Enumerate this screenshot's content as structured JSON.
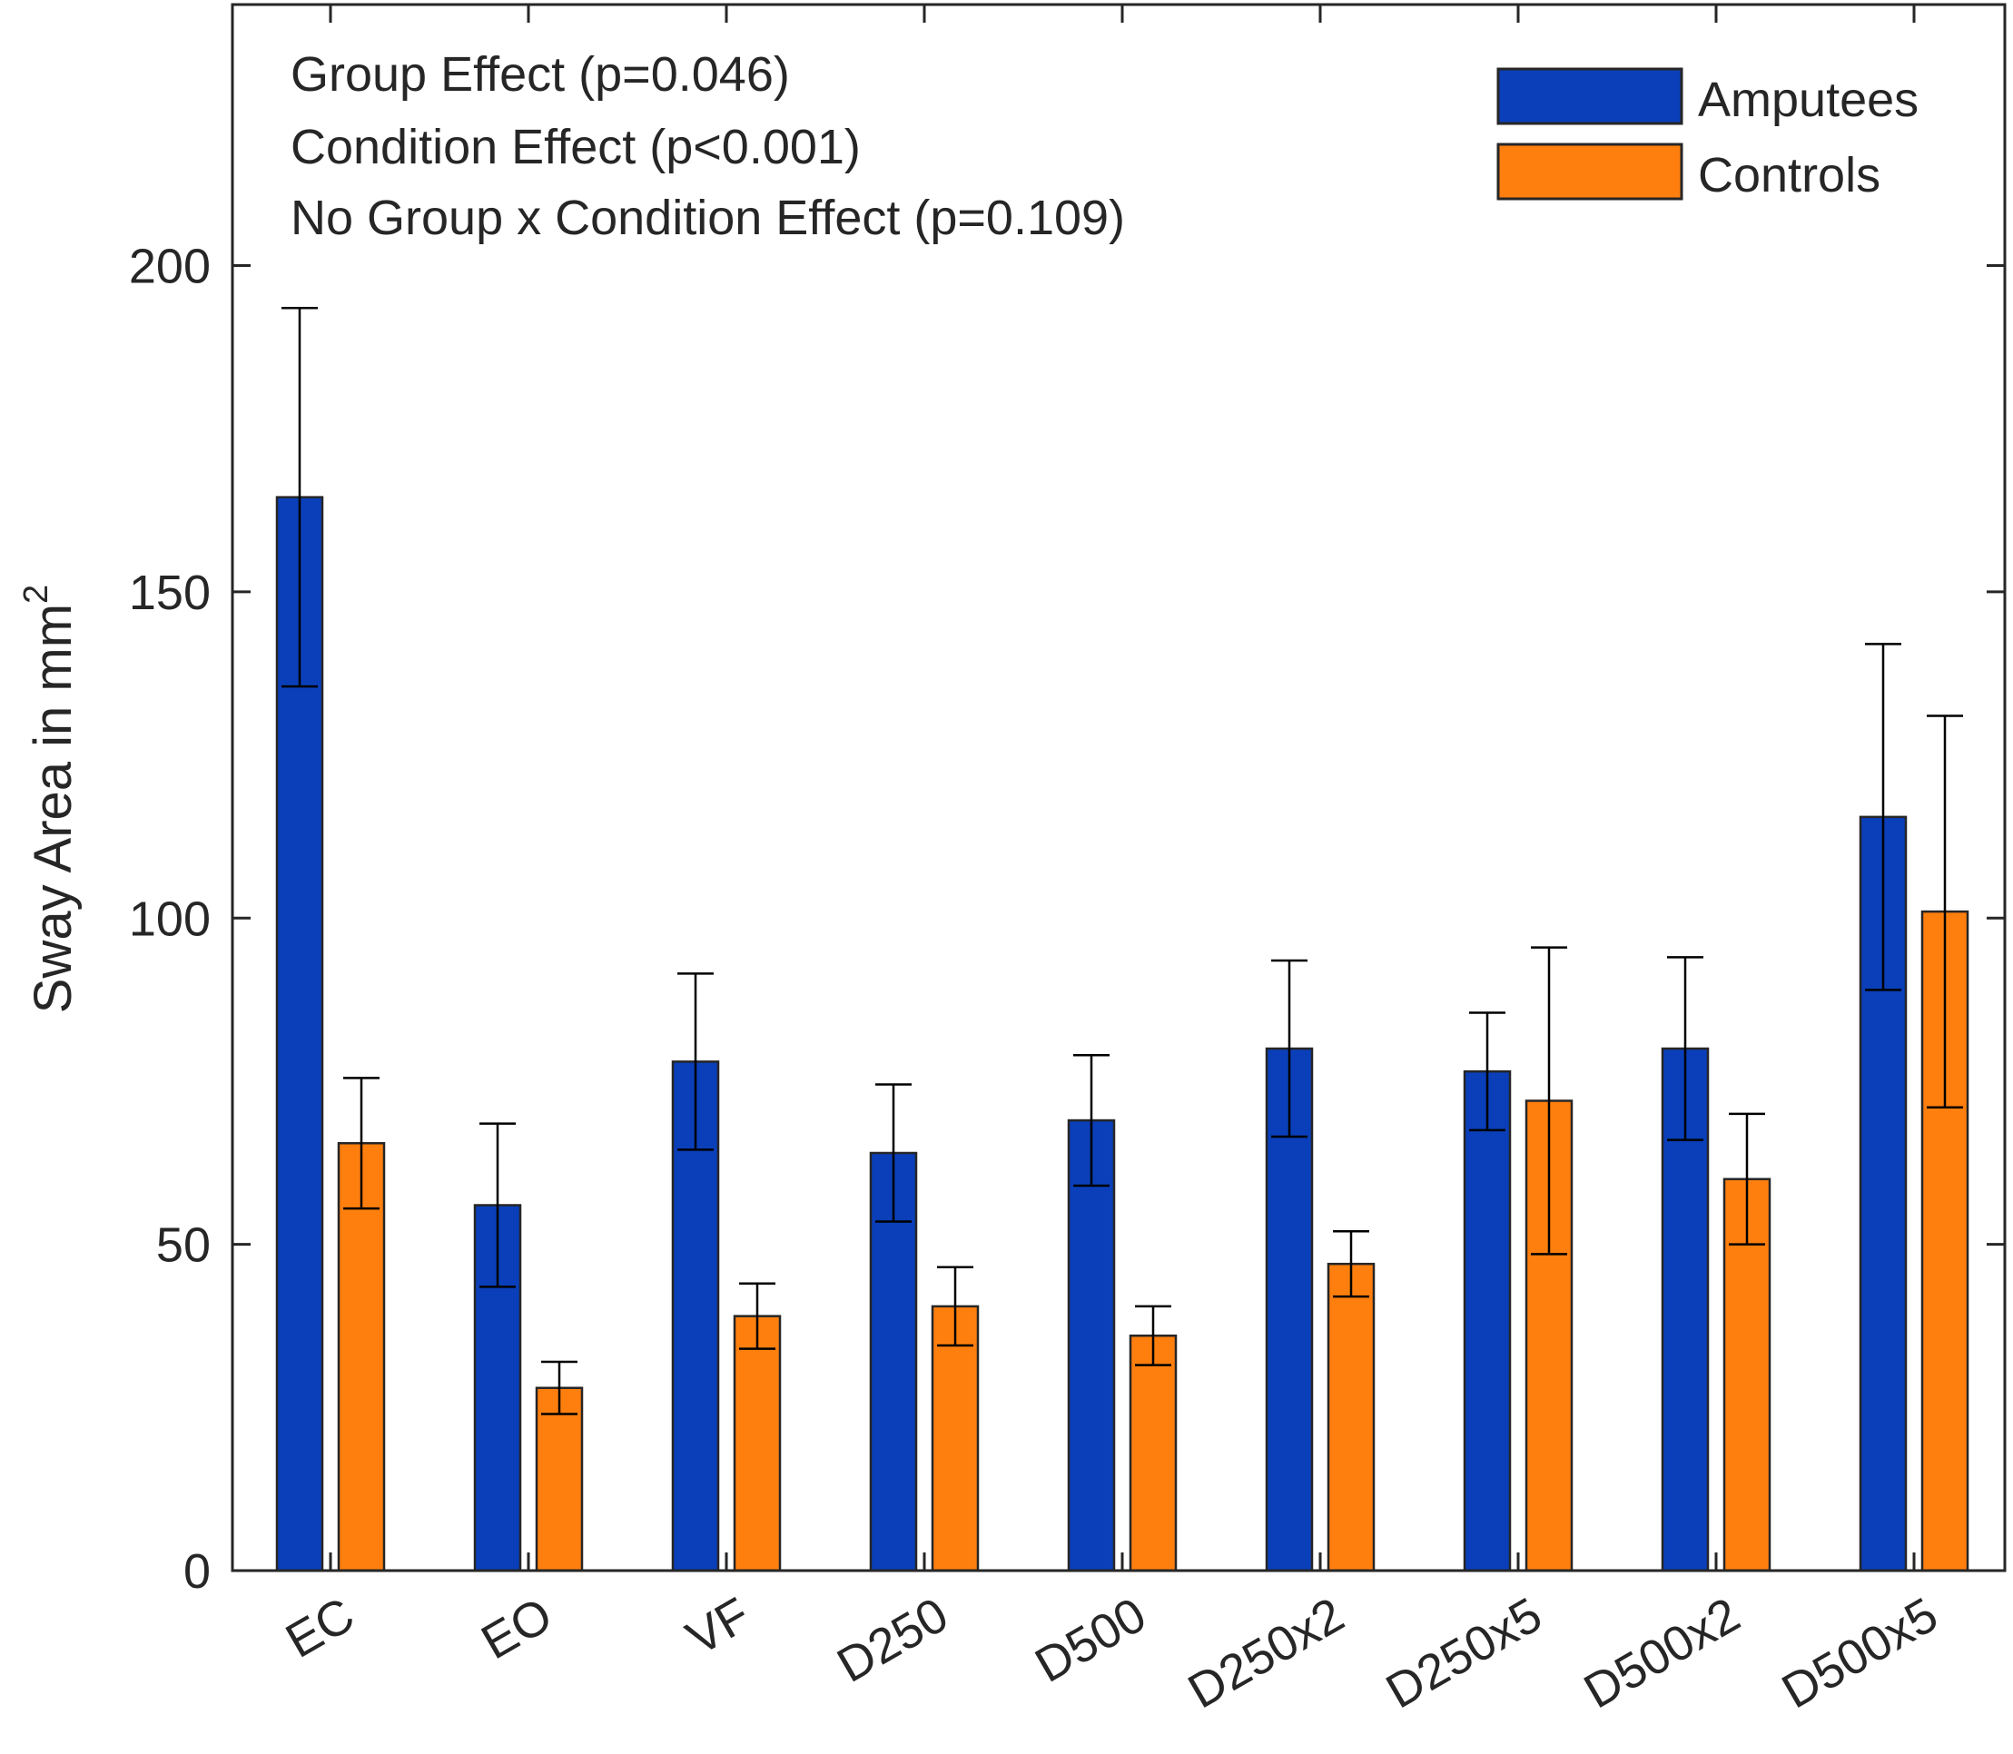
{
  "chart_data": {
    "type": "bar",
    "title": "",
    "xlabel": "",
    "ylabel": "Sway Area in mm",
    "ylabel_superscript": "2",
    "ylim": [
      0,
      240
    ],
    "yticks": [
      0,
      50,
      100,
      150,
      200
    ],
    "categories": [
      "EC",
      "EO",
      "VF",
      "D250",
      "D500",
      "D250x2",
      "D250x5",
      "D500x2",
      "D500x5"
    ],
    "series": [
      {
        "name": "Amputees",
        "color": "#0a3fb9",
        "values": [
          164.5,
          56,
          78,
          64,
          69,
          80,
          76.5,
          80,
          115.5
        ],
        "error": [
          29,
          12.5,
          13.5,
          10.5,
          10,
          13.5,
          9,
          14,
          26.5
        ]
      },
      {
        "name": "Controls",
        "color": "#ff7f0e",
        "values": [
          65.5,
          28,
          39,
          40.5,
          36,
          47,
          72,
          60,
          101
        ],
        "error": [
          10,
          4,
          5,
          6,
          4.5,
          5,
          23.5,
          10,
          30
        ]
      }
    ],
    "annotations": [
      "Group Effect (p=0.046)",
      "Condition Effect (p<0.001)",
      "No Group x Condition Effect (p=0.109)"
    ],
    "legend_position": "top-right",
    "grid": false
  }
}
